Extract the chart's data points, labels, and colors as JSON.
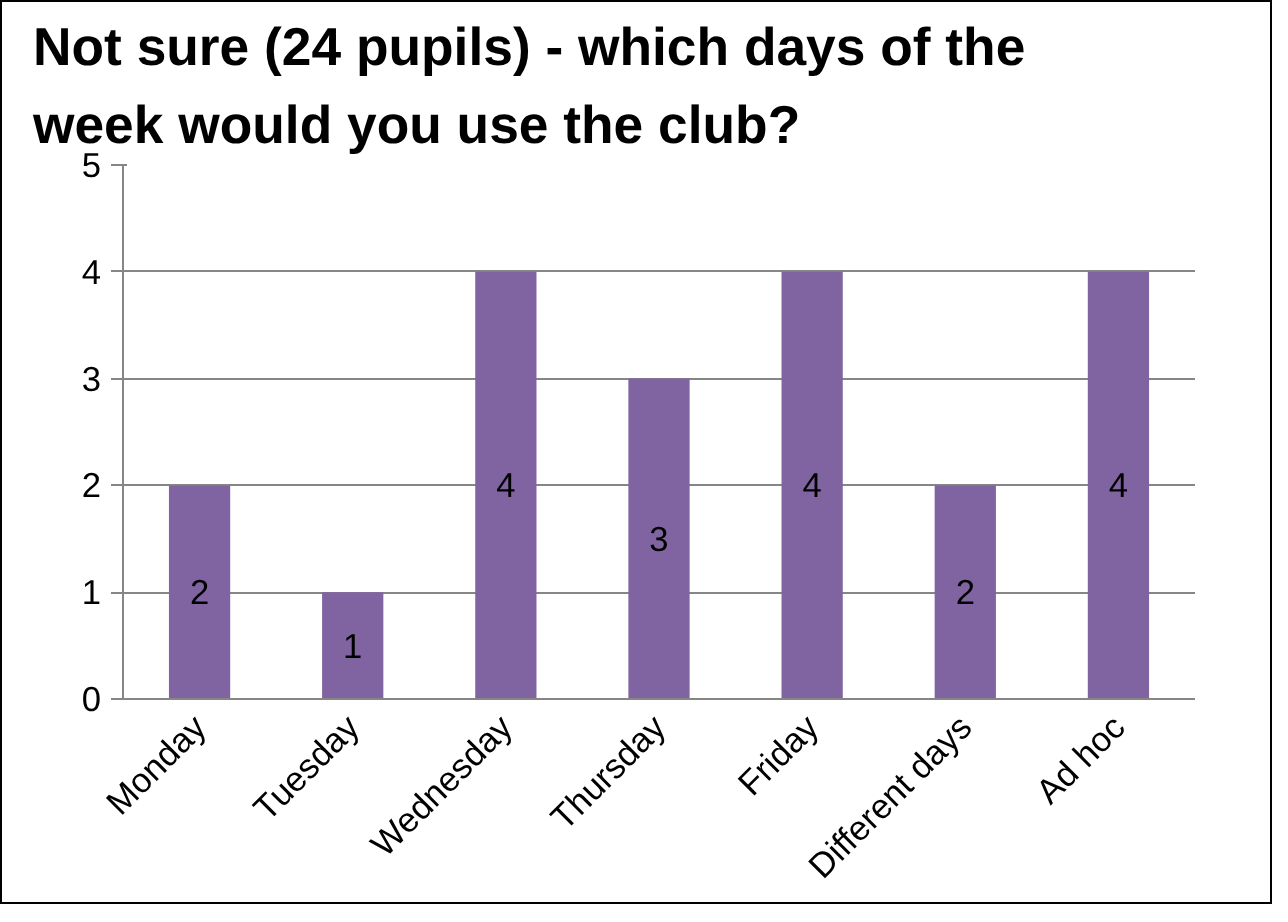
{
  "chart_data": {
    "type": "bar",
    "title": "Not sure (24 pupils) - which days of the week would you use the club?",
    "categories": [
      "Monday",
      "Tuesday",
      "Wednesday",
      "Thursday",
      "Friday",
      "Different days",
      "Ad hoc"
    ],
    "values": [
      2,
      1,
      4,
      3,
      4,
      2,
      4
    ],
    "color": "#8064a2",
    "ylim": [
      0,
      5
    ],
    "yticks": [
      0,
      1,
      2,
      3,
      4,
      5
    ],
    "grid": "y",
    "data_labels": true
  }
}
